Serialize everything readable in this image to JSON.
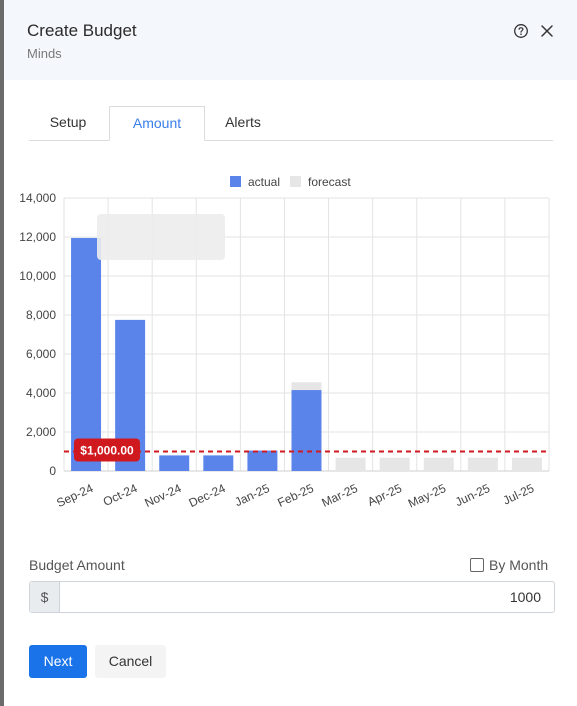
{
  "header": {
    "title": "Create Budget",
    "subtitle": "Minds",
    "help_icon": "help-circle-icon",
    "close_icon": "close-icon"
  },
  "tabs": [
    {
      "label": "Setup",
      "active": false
    },
    {
      "label": "Amount",
      "active": true
    },
    {
      "label": "Alerts",
      "active": false
    }
  ],
  "chart_data": {
    "type": "bar",
    "categories": [
      "Sep-24",
      "Oct-24",
      "Nov-24",
      "Dec-24",
      "Jan-25",
      "Feb-25",
      "Mar-25",
      "Apr-25",
      "May-25",
      "Jun-25",
      "Jul-25"
    ],
    "series": [
      {
        "name": "actual",
        "color": "#5b84ea",
        "values": [
          11950,
          7750,
          800,
          800,
          1050,
          4150,
          null,
          null,
          null,
          null,
          null
        ]
      },
      {
        "name": "forecast",
        "color": "#e6e6e6",
        "values": [
          null,
          null,
          null,
          null,
          null,
          4550,
          680,
          680,
          680,
          680,
          680
        ]
      }
    ],
    "ylim": [
      0,
      14000
    ],
    "yticks": [
      0,
      2000,
      4000,
      6000,
      8000,
      10000,
      12000,
      14000
    ],
    "ytick_labels": [
      "0",
      "2,000",
      "4,000",
      "6,000",
      "8,000",
      "10,000",
      "12,000",
      "14,000"
    ],
    "threshold": {
      "value": 1000,
      "label": "$1,000.00",
      "color": "#d0191f"
    },
    "legend_position": "top",
    "grid": true
  },
  "budget": {
    "label": "Budget Amount",
    "by_month_label": "By Month",
    "by_month_checked": false,
    "currency_prefix": "$",
    "amount_value": "1000"
  },
  "buttons": {
    "next_label": "Next",
    "cancel_label": "Cancel"
  }
}
